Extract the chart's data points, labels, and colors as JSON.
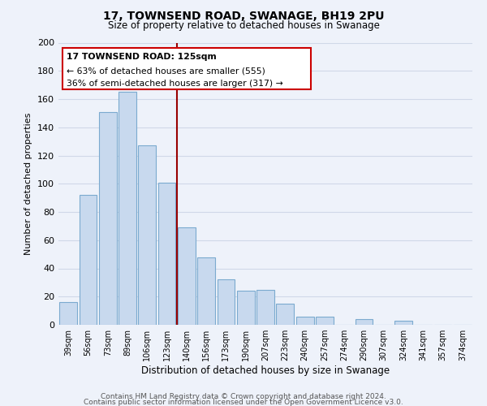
{
  "title": "17, TOWNSEND ROAD, SWANAGE, BH19 2PU",
  "subtitle": "Size of property relative to detached houses in Swanage",
  "xlabel": "Distribution of detached houses by size in Swanage",
  "ylabel": "Number of detached properties",
  "bar_labels": [
    "39sqm",
    "56sqm",
    "73sqm",
    "89sqm",
    "106sqm",
    "123sqm",
    "140sqm",
    "156sqm",
    "173sqm",
    "190sqm",
    "207sqm",
    "223sqm",
    "240sqm",
    "257sqm",
    "274sqm",
    "290sqm",
    "307sqm",
    "324sqm",
    "341sqm",
    "357sqm",
    "374sqm"
  ],
  "bar_values": [
    16,
    92,
    151,
    165,
    127,
    101,
    69,
    48,
    32,
    24,
    25,
    15,
    6,
    6,
    0,
    4,
    0,
    3,
    0,
    0,
    0
  ],
  "bar_color": "#c8d9ee",
  "bar_edge_color": "#7baacf",
  "vline_x": 5.5,
  "vline_color": "#990000",
  "annotation_title": "17 TOWNSEND ROAD: 125sqm",
  "annotation_line1": "← 63% of detached houses are smaller (555)",
  "annotation_line2": "36% of semi-detached houses are larger (317) →",
  "annotation_box_color": "#ffffff",
  "annotation_box_edge": "#cc0000",
  "ylim": [
    0,
    200
  ],
  "yticks": [
    0,
    20,
    40,
    60,
    80,
    100,
    120,
    140,
    160,
    180,
    200
  ],
  "footer1": "Contains HM Land Registry data © Crown copyright and database right 2024.",
  "footer2": "Contains public sector information licensed under the Open Government Licence v3.0.",
  "bg_color": "#eef2fa",
  "grid_color": "#d0d8e8",
  "title_fontsize": 10,
  "subtitle_fontsize": 8.5
}
